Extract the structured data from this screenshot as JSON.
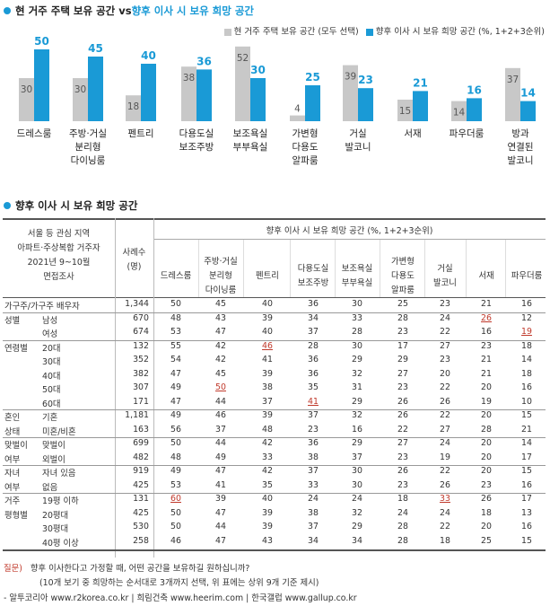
{
  "top": {
    "title_part1": "현 거주 주택 보유 공간 vs ",
    "title_part2": "향후 이사 시 보유 희망 공간",
    "legend": [
      {
        "label": "현 거주 주택 보유 공간 (모두 선택)",
        "color": "#c8c8c8"
      },
      {
        "label": "향후 이사 시 보유 희망 공간 (%, 1+2+3순위)",
        "color": "#1a9ad6"
      }
    ]
  },
  "chart_data": {
    "type": "bar",
    "categories": [
      "드레스룸",
      "주방·거실 분리형 다이닝룸",
      "펜트리",
      "다용도실 보조주방",
      "보조욕실 부부욕실",
      "가변형 다용도 알파룸",
      "거실 발코니",
      "서재",
      "파우더룸",
      "방과 연결된 발코니"
    ],
    "category_lines": [
      [
        "드레스룸"
      ],
      [
        "주방·거실",
        "분리형",
        "다이닝룸"
      ],
      [
        "펜트리"
      ],
      [
        "다용도실",
        "보조주방"
      ],
      [
        "보조욕실",
        "부부욕실"
      ],
      [
        "가변형",
        "다용도",
        "알파룸"
      ],
      [
        "거실",
        "발코니"
      ],
      [
        "서재"
      ],
      [
        "파우더룸"
      ],
      [
        "방과",
        "연결된",
        "발코니"
      ]
    ],
    "series": [
      {
        "name": "현 거주 주택 보유 공간 (모두 선택)",
        "color": "#c8c8c8",
        "values": [
          30,
          30,
          18,
          38,
          52,
          4,
          39,
          15,
          14,
          37
        ]
      },
      {
        "name": "향후 이사 시 보유 희망 공간 (%, 1+2+3순위)",
        "color": "#1a9ad6",
        "values": [
          50,
          45,
          40,
          36,
          30,
          25,
          23,
          21,
          16,
          14
        ]
      }
    ],
    "ylim": [
      0,
      60
    ]
  },
  "table": {
    "title": "향후 이사 시 보유 희망 공간",
    "header_desc": [
      "서울 등 관심 지역",
      "아파트·주상복합 거주자",
      "2021년 9~10월",
      "면접조사"
    ],
    "header_n": [
      "사례수",
      "(명)"
    ],
    "header_group": "향후 이사 시 보유 희망 공간 (%, 1+2+3순위)",
    "columns": [
      [
        "드레스룸"
      ],
      [
        "주방·거실",
        "분리형",
        "다이닝룸"
      ],
      [
        "펜트리"
      ],
      [
        "다용도실",
        "보조주방"
      ],
      [
        "보조욕실",
        "부부욕실"
      ],
      [
        "가변형",
        "다용도",
        "알파룸"
      ],
      [
        "거실",
        "발코니"
      ],
      [
        "서재"
      ],
      [
        "파우더룸"
      ]
    ],
    "rows": [
      {
        "g": "가구주/가구주 배우자",
        "s": "",
        "n": "1,344",
        "v": [
          "50",
          "45",
          "40",
          "36",
          "30",
          "25",
          "23",
          "21",
          "16"
        ]
      },
      {
        "g": "성별",
        "s": "남성",
        "n": "670",
        "v": [
          "48",
          "43",
          "39",
          "34",
          "33",
          "28",
          "24",
          "26",
          "12"
        ]
      },
      {
        "g": "",
        "s": "여성",
        "n": "674",
        "v": [
          "53",
          "47",
          "40",
          "37",
          "28",
          "23",
          "22",
          "16",
          "19"
        ]
      },
      {
        "g": "연령별",
        "s": "20대",
        "n": "132",
        "v": [
          "55",
          "42",
          "46",
          "28",
          "30",
          "17",
          "27",
          "23",
          "18"
        ]
      },
      {
        "g": "",
        "s": "30대",
        "n": "352",
        "v": [
          "54",
          "42",
          "41",
          "36",
          "29",
          "29",
          "23",
          "21",
          "14"
        ]
      },
      {
        "g": "",
        "s": "40대",
        "n": "382",
        "v": [
          "47",
          "45",
          "39",
          "36",
          "32",
          "27",
          "20",
          "21",
          "18"
        ]
      },
      {
        "g": "",
        "s": "50대",
        "n": "307",
        "v": [
          "49",
          "50",
          "38",
          "35",
          "31",
          "23",
          "22",
          "20",
          "16"
        ]
      },
      {
        "g": "",
        "s": "60대",
        "n": "171",
        "v": [
          "47",
          "44",
          "37",
          "41",
          "29",
          "26",
          "26",
          "19",
          "10"
        ]
      },
      {
        "g": "혼인",
        "s": "기혼",
        "n": "1,181",
        "v": [
          "49",
          "46",
          "39",
          "37",
          "32",
          "26",
          "22",
          "20",
          "15"
        ]
      },
      {
        "g": "상태",
        "s": "미혼/비혼",
        "n": "163",
        "v": [
          "56",
          "37",
          "48",
          "23",
          "16",
          "22",
          "27",
          "28",
          "21"
        ]
      },
      {
        "g": "맞벌이",
        "s": "맞벌이",
        "n": "699",
        "v": [
          "50",
          "44",
          "42",
          "36",
          "29",
          "27",
          "24",
          "20",
          "14"
        ]
      },
      {
        "g": "여부",
        "s": "외벌이",
        "n": "482",
        "v": [
          "48",
          "49",
          "33",
          "38",
          "37",
          "23",
          "19",
          "20",
          "17"
        ]
      },
      {
        "g": "자녀",
        "s": "자녀 있음",
        "n": "919",
        "v": [
          "49",
          "47",
          "42",
          "37",
          "30",
          "26",
          "22",
          "20",
          "15"
        ]
      },
      {
        "g": "여부",
        "s": "없음",
        "n": "425",
        "v": [
          "53",
          "41",
          "35",
          "33",
          "30",
          "23",
          "26",
          "23",
          "16"
        ]
      },
      {
        "g": "거주",
        "s": "19평 이하",
        "n": "131",
        "v": [
          "60",
          "39",
          "40",
          "24",
          "24",
          "18",
          "33",
          "26",
          "17"
        ]
      },
      {
        "g": "평형별",
        "s": "20평대",
        "n": "425",
        "v": [
          "50",
          "47",
          "39",
          "38",
          "32",
          "24",
          "24",
          "18",
          "13"
        ]
      },
      {
        "g": "",
        "s": "30평대",
        "n": "530",
        "v": [
          "50",
          "44",
          "39",
          "37",
          "29",
          "28",
          "22",
          "20",
          "16"
        ]
      },
      {
        "g": "",
        "s": "40평 이상",
        "n": "258",
        "v": [
          "46",
          "47",
          "43",
          "34",
          "34",
          "28",
          "18",
          "25",
          "15"
        ]
      }
    ],
    "highlight_values": [
      "26",
      "19",
      "46",
      "50",
      "41",
      "60",
      "33"
    ]
  },
  "footer": {
    "question_label": "질문)",
    "question_text": "향후 이사한다고 가정할 때, 어떤 공간을 보유하길 원하십니까?",
    "question_note": "(10개 보기 중 희망하는 순서대로 3개까지 선택, 위 표에는 상위 9개 기준 제시)",
    "source": "- 알투코리아 www.r2korea.co.kr | 희림건축 www.heerim.com | 한국갤럽 www.gallup.co.kr"
  }
}
